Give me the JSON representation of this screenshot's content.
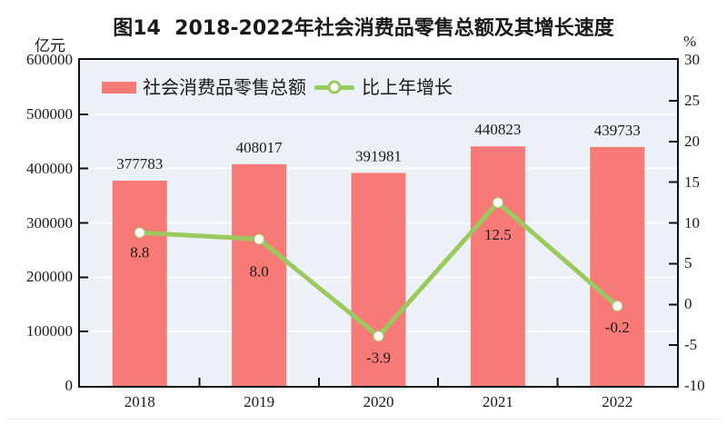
{
  "figure": {
    "title": "图14  2018-2022年社会消费品零售总额及其增长速度",
    "left_axis_unit": "亿元",
    "right_axis_unit": "%"
  },
  "legend": [
    {
      "label": "社会消费品零售总额",
      "type": "bar",
      "color": "#F87A77"
    },
    {
      "label": "比上年增长",
      "type": "line",
      "color": "#9AC95E"
    }
  ],
  "chart_data": {
    "type": "bar",
    "title": "图14  2018-2022年社会消费品零售总额及其增长速度",
    "categories": [
      "2018",
      "2019",
      "2020",
      "2021",
      "2022"
    ],
    "series": [
      {
        "name": "社会消费品零售总额",
        "type": "bar",
        "axis": "left",
        "values": [
          377783,
          408017,
          391981,
          440823,
          439733
        ],
        "color": "#F87A77"
      },
      {
        "name": "比上年增长",
        "type": "line",
        "axis": "right",
        "values": [
          8.8,
          8.0,
          -3.9,
          12.5,
          -0.2
        ],
        "color": "#9AC95E",
        "marker": "open-circle"
      }
    ],
    "left_axis": {
      "unit": "亿元",
      "min": 0,
      "max": 600000,
      "step": 100000,
      "ticks": [
        "0",
        "100000",
        "200000",
        "300000",
        "400000",
        "500000",
        "600000"
      ]
    },
    "right_axis": {
      "unit": "%",
      "min": -10,
      "max": 30,
      "step": 5,
      "ticks": [
        "-10",
        "-5",
        "0",
        "5",
        "10",
        "15",
        "20",
        "25",
        "30"
      ]
    },
    "grid": true,
    "plot_background": "#EBF1F6",
    "gridline_color": "#ffffff",
    "legend_position": "top-left-inside",
    "data_labels": true
  }
}
